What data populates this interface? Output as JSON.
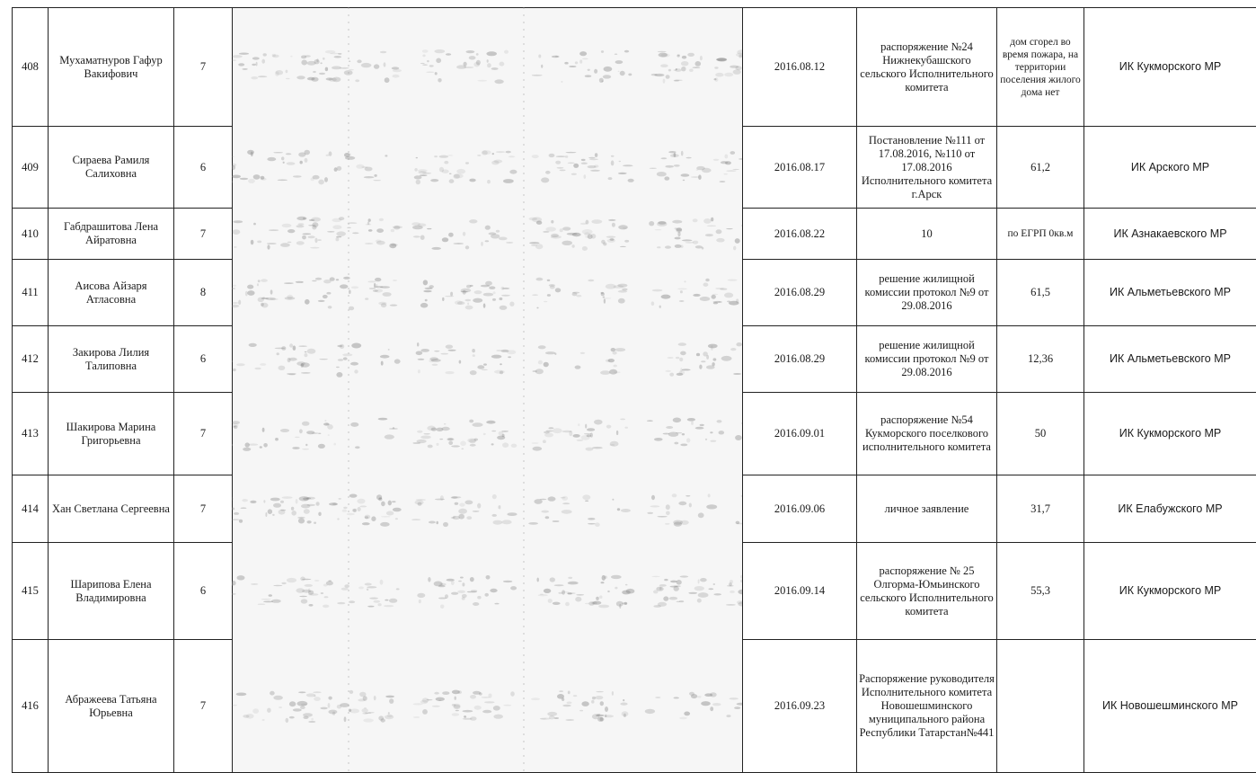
{
  "rows": [
    {
      "num": "408",
      "name": "Мухаматнуров Гафур Вакифович",
      "family": "7",
      "date": "2016.08.12",
      "document": "распоряжение №24 Нижнекубашского сельского Исполнительного комитета",
      "area": "дом сгорел во время пожара, на территории поселения жилого дома нет",
      "org": "ИК Кукморского МР"
    },
    {
      "num": "409",
      "name": "Сираева Рамиля Салиховна",
      "family": "6",
      "date": "2016.08.17",
      "document": "Постановление №111 от 17.08.2016, №110 от 17.08.2016 Исполнительного комитета г.Арск",
      "area": "61,2",
      "org": "ИК Арского МР"
    },
    {
      "num": "410",
      "name": "Габдрашитова Лена Айратовна",
      "family": "7",
      "date": "2016.08.22",
      "document": "10",
      "area": "по ЕГРП 0кв.м",
      "org": "ИК Азнакаевского МР"
    },
    {
      "num": "411",
      "name": "Аисова Айзаря Атласовна",
      "family": "8",
      "date": "2016.08.29",
      "document": "решение жилищной комиссии протокол №9 от 29.08.2016",
      "area": "61,5",
      "org": "ИК Альметьевского МР"
    },
    {
      "num": "412",
      "name": "Закирова Лилия Талиповна",
      "family": "6",
      "date": "2016.08.29",
      "document": "решение жилищной комиссии протокол №9 от 29.08.2016",
      "area": "12,36",
      "org": "ИК Альметьевского МР"
    },
    {
      "num": "413",
      "name": "Шакирова Марина Григорьевна",
      "family": "7",
      "date": "2016.09.01",
      "document": "распоряжение №54 Кукморского поселкового исполнительного комитета",
      "area": "50",
      "org": "ИК Кукморского МР"
    },
    {
      "num": "414",
      "name": "Хан Светлана Сергеевна",
      "family": "7",
      "date": "2016.09.06",
      "document": "личное заявление",
      "area": "31,7",
      "org": "ИК Елабужского МР"
    },
    {
      "num": "415",
      "name": "Шарипова Елена Владимировна",
      "family": "6",
      "date": "2016.09.14",
      "document": "распоряжение № 25 Олгорма-Юмьинского сельского Исполнительного комитета",
      "area": "55,3",
      "org": "ИК Кукморского МР"
    },
    {
      "num": "416",
      "name": "Абражеева Татьяна Юрьевна",
      "family": "7",
      "date": "2016.09.23",
      "document": "Распоряжение руководителя Исполнительного комитета Новошешминского муниципального района Республики Татарстан№441",
      "area": "",
      "org": "ИК Новошешминского МР"
    }
  ]
}
